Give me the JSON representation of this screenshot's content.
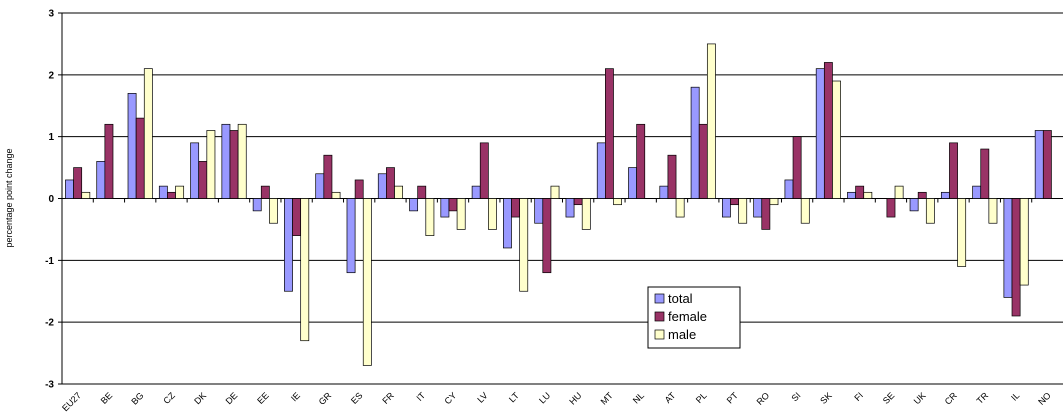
{
  "chart_data": {
    "type": "bar",
    "y_label": "percentage point change",
    "categories": [
      "EU27",
      "BE",
      "BG",
      "CZ",
      "DK",
      "DE",
      "EE",
      "IE",
      "GR",
      "ES",
      "FR",
      "IT",
      "CY",
      "LV",
      "LT",
      "LU",
      "HU",
      "MT",
      "NL",
      "AT",
      "PL",
      "PT",
      "RO",
      "SI",
      "SK",
      "FI",
      "SE",
      "UK",
      "CR",
      "TR",
      "IL",
      "NO"
    ],
    "series": [
      {
        "name": "total",
        "color": "#9999ff",
        "values": [
          0.3,
          0.6,
          1.7,
          0.2,
          0.9,
          1.2,
          -0.2,
          -1.5,
          0.4,
          -1.2,
          0.4,
          -0.2,
          -0.3,
          0.2,
          -0.8,
          -0.4,
          -0.3,
          0.9,
          0.5,
          0.2,
          1.8,
          -0.3,
          -0.3,
          0.3,
          2.1,
          0.1,
          0,
          -0.2,
          0.1,
          0.2,
          -1.6,
          1.1
        ]
      },
      {
        "name": "female",
        "color": "#993366",
        "values": [
          0.5,
          1.2,
          1.3,
          0.1,
          0.6,
          1.1,
          0.2,
          -0.6,
          0.7,
          0.3,
          0.5,
          0.2,
          -0.2,
          0.9,
          -0.3,
          -1.2,
          -0.1,
          2.1,
          1.2,
          0.7,
          1.2,
          -0.1,
          -0.5,
          1.0,
          2.2,
          0.2,
          -0.3,
          0.1,
          0.9,
          0.8,
          -1.9,
          1.1
        ]
      },
      {
        "name": "male",
        "color": "#ffffcc",
        "values": [
          0.1,
          0,
          2.1,
          0.2,
          1.1,
          1.2,
          -0.4,
          -2.3,
          0.1,
          -2.7,
          0.2,
          -0.6,
          -0.5,
          -0.5,
          -1.5,
          0.2,
          -0.5,
          -0.1,
          0,
          -0.3,
          2.5,
          -0.4,
          -0.1,
          -0.4,
          1.9,
          0.1,
          0.2,
          -0.4,
          -1.1,
          -0.4,
          -1.4,
          0
        ]
      }
    ],
    "ylim": [
      -3,
      3
    ],
    "yticks": [
      -3,
      -2,
      -1,
      0,
      1,
      2,
      3
    ],
    "grid": true,
    "legend": "lower-center"
  }
}
